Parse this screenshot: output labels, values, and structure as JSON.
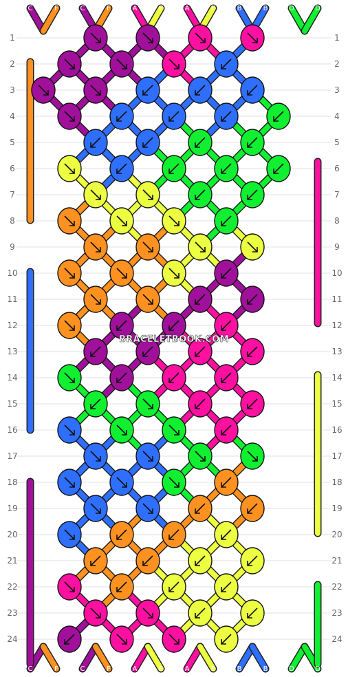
{
  "watermark": "BRACELETBOOK.COM",
  "colors": {
    "C": "#a0109a",
    "F": "#ff9120",
    "A": "#ff10a0",
    "E": "#ecff40",
    "B": "#2f6fff",
    "D": "#10f030"
  },
  "strands_top": [
    "C",
    "F",
    "C",
    "F",
    "A",
    "E",
    "A",
    "E",
    "B",
    "B",
    "D",
    "D"
  ],
  "strands_bottom": [
    "C",
    "F",
    "C",
    "F",
    "A",
    "E",
    "A",
    "E",
    "B",
    "B",
    "D",
    "D"
  ],
  "rows": [
    {
      "n": 1,
      "knots": [
        [
          "C",
          "r"
        ],
        [
          "C",
          "r"
        ],
        [
          "A",
          "r"
        ],
        [
          "A",
          "r"
        ]
      ]
    },
    {
      "n": 2,
      "knots": [
        [
          "C",
          "r"
        ],
        [
          "C",
          "r"
        ],
        [
          "A",
          "r"
        ],
        [
          "B",
          "l"
        ]
      ]
    },
    {
      "n": 3,
      "knots": [
        [
          "C",
          "r"
        ],
        [
          "C",
          "r"
        ],
        [
          "B",
          "l"
        ],
        [
          "B",
          "l"
        ],
        [
          "B",
          "l"
        ]
      ]
    },
    {
      "n": 4,
      "knots": [
        [
          "C",
          "r"
        ],
        [
          "B",
          "l"
        ],
        [
          "B",
          "l"
        ],
        [
          "B",
          "l"
        ],
        [
          "D",
          "l"
        ]
      ]
    },
    {
      "n": 5,
      "knots": [
        [
          "B",
          "l"
        ],
        [
          "B",
          "l"
        ],
        [
          "D",
          "l"
        ],
        [
          "D",
          "l"
        ]
      ]
    },
    {
      "n": 6,
      "knots": [
        [
          "E",
          "r"
        ],
        [
          "B",
          "l"
        ],
        [
          "D",
          "l"
        ],
        [
          "D",
          "l"
        ],
        [
          "D",
          "l"
        ]
      ]
    },
    {
      "n": 7,
      "knots": [
        [
          "E",
          "r"
        ],
        [
          "E",
          "r"
        ],
        [
          "D",
          "l"
        ],
        [
          "D",
          "l"
        ]
      ]
    },
    {
      "n": 8,
      "knots": [
        [
          "F",
          "r"
        ],
        [
          "E",
          "r"
        ],
        [
          "E",
          "r"
        ],
        [
          "D",
          "l"
        ]
      ]
    },
    {
      "n": 9,
      "knots": [
        [
          "F",
          "r"
        ],
        [
          "F",
          "r"
        ],
        [
          "E",
          "r"
        ],
        [
          "E",
          "r"
        ]
      ]
    },
    {
      "n": 10,
      "knots": [
        [
          "F",
          "r"
        ],
        [
          "F",
          "r"
        ],
        [
          "E",
          "r"
        ],
        [
          "C",
          "l"
        ]
      ]
    },
    {
      "n": 11,
      "knots": [
        [
          "F",
          "r"
        ],
        [
          "F",
          "r"
        ],
        [
          "C",
          "l"
        ],
        [
          "C",
          "l"
        ]
      ]
    },
    {
      "n": 12,
      "knots": [
        [
          "F",
          "r"
        ],
        [
          "C",
          "l"
        ],
        [
          "C",
          "l"
        ],
        [
          "A",
          "l"
        ]
      ]
    },
    {
      "n": 13,
      "knots": [
        [
          "C",
          "l"
        ],
        [
          "C",
          "l"
        ],
        [
          "A",
          "l"
        ],
        [
          "A",
          "l"
        ]
      ]
    },
    {
      "n": 14,
      "knots": [
        [
          "D",
          "r"
        ],
        [
          "C",
          "l"
        ],
        [
          "A",
          "l"
        ],
        [
          "A",
          "l"
        ]
      ]
    },
    {
      "n": 15,
      "knots": [
        [
          "D",
          "l"
        ],
        [
          "D",
          "r"
        ],
        [
          "A",
          "l"
        ],
        [
          "A",
          "l"
        ]
      ]
    },
    {
      "n": 16,
      "knots": [
        [
          "B",
          "r"
        ],
        [
          "D",
          "r"
        ],
        [
          "D",
          "r"
        ],
        [
          "A",
          "l"
        ]
      ]
    },
    {
      "n": 17,
      "knots": [
        [
          "B",
          "r"
        ],
        [
          "B",
          "r"
        ],
        [
          "D",
          "r"
        ],
        [
          "D",
          "r"
        ]
      ]
    },
    {
      "n": 18,
      "knots": [
        [
          "B",
          "r"
        ],
        [
          "B",
          "r"
        ],
        [
          "D",
          "r"
        ],
        [
          "F",
          "l"
        ]
      ]
    },
    {
      "n": 19,
      "knots": [
        [
          "B",
          "r"
        ],
        [
          "B",
          "r"
        ],
        [
          "F",
          "l"
        ],
        [
          "F",
          "l"
        ]
      ]
    },
    {
      "n": 20,
      "knots": [
        [
          "B",
          "r"
        ],
        [
          "F",
          "l"
        ],
        [
          "F",
          "l"
        ],
        [
          "E",
          "l"
        ]
      ]
    },
    {
      "n": 21,
      "knots": [
        [
          "F",
          "l"
        ],
        [
          "F",
          "l"
        ],
        [
          "E",
          "l"
        ],
        [
          "E",
          "l"
        ]
      ]
    },
    {
      "n": 22,
      "knots": [
        [
          "A",
          "r"
        ],
        [
          "F",
          "l"
        ],
        [
          "E",
          "l"
        ],
        [
          "E",
          "l"
        ]
      ]
    },
    {
      "n": 23,
      "knots": [
        [
          "A",
          "r"
        ],
        [
          "A",
          "r"
        ],
        [
          "E",
          "l"
        ],
        [
          "E",
          "l"
        ]
      ]
    },
    {
      "n": 24,
      "knots": [
        [
          "C",
          "l"
        ],
        [
          "A",
          "r"
        ],
        [
          "A",
          "r"
        ],
        [
          "E",
          "l"
        ]
      ]
    }
  ]
}
